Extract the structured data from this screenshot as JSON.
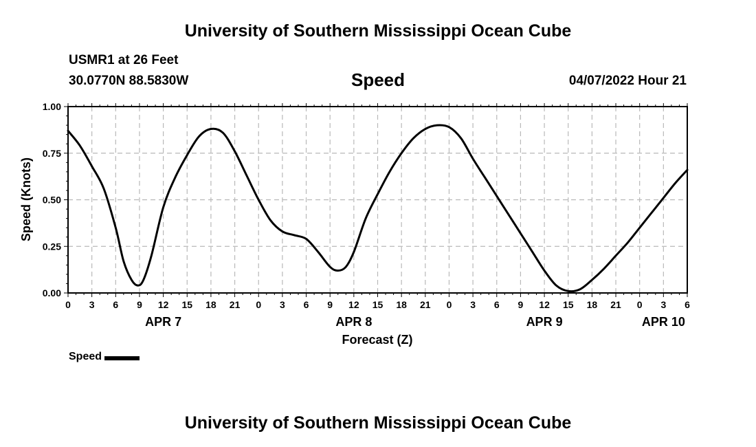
{
  "header": {
    "title": "University of Southern Mississippi Ocean Cube",
    "station": "USMR1 at 26 Feet",
    "coords": "30.0770N  88.5830W",
    "variable": "Speed",
    "datetime": "04/07/2022 Hour 21"
  },
  "footer": {
    "title": "University of Southern Mississippi Ocean Cube"
  },
  "legend": {
    "label": "Speed"
  },
  "colors": {
    "line": "#000000",
    "grid": "#b8b8b8",
    "frame": "#000000"
  },
  "chart_data": {
    "type": "line",
    "xlabel": "Forecast (Z)",
    "ylabel": "Speed (Knots)",
    "ylim": [
      0,
      1
    ],
    "xlim": [
      0,
      78
    ],
    "yticks": [
      0,
      0.25,
      0.5,
      0.75,
      1
    ],
    "ytick_labels": [
      "0.00",
      "0.25",
      "0.50",
      "0.75",
      "1.00"
    ],
    "xticks": [
      0,
      3,
      6,
      9,
      12,
      15,
      18,
      21,
      24,
      27,
      30,
      33,
      36,
      39,
      42,
      45,
      48,
      51,
      54,
      57,
      60,
      63,
      66,
      69,
      72,
      75,
      78
    ],
    "xtick_labels": [
      "0",
      "3",
      "6",
      "9",
      "12",
      "15",
      "18",
      "21",
      "0",
      "3",
      "6",
      "9",
      "12",
      "15",
      "18",
      "21",
      "0",
      "3",
      "6",
      "9",
      "12",
      "15",
      "18",
      "21",
      "0",
      "3",
      "6"
    ],
    "date_labels": [
      {
        "x": 12,
        "text": "APR 7"
      },
      {
        "x": 36,
        "text": "APR 8"
      },
      {
        "x": 60,
        "text": "APR 9"
      },
      {
        "x": 75,
        "text": "APR 10"
      }
    ],
    "grid": true,
    "legend_position": "bottom-left",
    "series": [
      {
        "name": "Speed",
        "x": [
          0,
          1.5,
          3,
          4.5,
          6,
          7,
          8,
          8.8,
          9.5,
          10.5,
          12,
          13.5,
          15,
          16.5,
          18,
          19.5,
          21,
          22.5,
          24,
          25.5,
          27,
          28.5,
          30,
          31.5,
          33,
          34,
          35,
          36,
          37.5,
          39,
          40.5,
          42,
          43.5,
          45,
          46.5,
          48,
          49.5,
          51,
          52.5,
          54,
          55.5,
          57,
          58.5,
          60,
          61.5,
          63,
          64.5,
          66,
          67.5,
          69,
          70.5,
          72,
          73.5,
          75,
          76.5,
          78
        ],
        "y": [
          0.87,
          0.79,
          0.68,
          0.56,
          0.35,
          0.17,
          0.07,
          0.04,
          0.07,
          0.2,
          0.46,
          0.62,
          0.74,
          0.84,
          0.88,
          0.86,
          0.76,
          0.63,
          0.5,
          0.39,
          0.33,
          0.31,
          0.29,
          0.22,
          0.14,
          0.12,
          0.14,
          0.22,
          0.4,
          0.53,
          0.65,
          0.75,
          0.83,
          0.88,
          0.9,
          0.89,
          0.83,
          0.72,
          0.62,
          0.52,
          0.42,
          0.32,
          0.22,
          0.12,
          0.04,
          0.01,
          0.02,
          0.07,
          0.13,
          0.2,
          0.27,
          0.35,
          0.43,
          0.51,
          0.59,
          0.66
        ]
      }
    ]
  }
}
